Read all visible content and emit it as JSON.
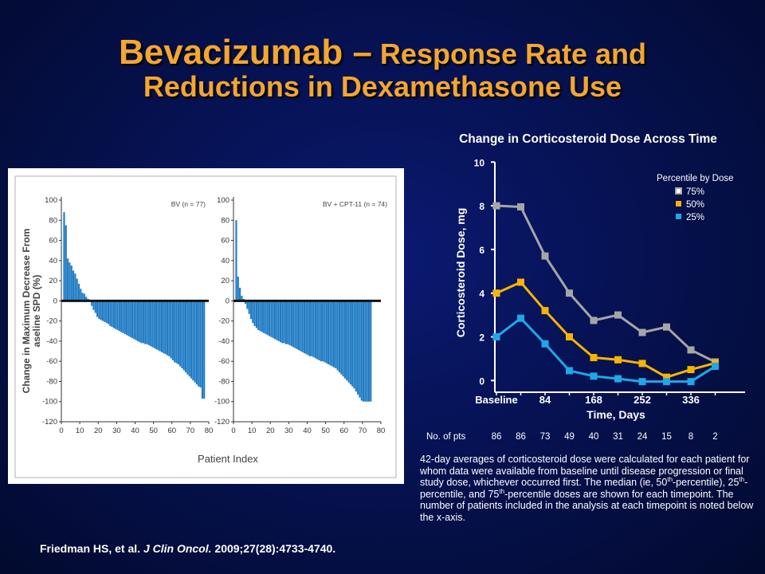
{
  "slide": {
    "title_part1": "Bevacizumab –",
    "title_part2": " Response Rate and",
    "title_line2": "Reductions in Dexamethasone Use",
    "caption_part1": "42-day averages  of corticosteroid dose were calculated for each patient for whom data were available  from baseline until disease progression or final study dose, whichever occurred first. The median (ie, 50",
    "caption_sup1": "th",
    "caption_part2": "-percentile), 25",
    "caption_sup2": "th",
    "caption_part3": "-percentile, and 75",
    "caption_sup3": "th",
    "caption_part4": "-percentile doses are shown for each timepoint. The number of patients included in the analysis at each timepoint is noted below the x-axis.",
    "citation_authors": "Friedman HS, et al. ",
    "citation_journal": "J Clin Oncol.",
    "citation_rest": " 2009;27(28):4733-4740."
  },
  "colors": {
    "title": "#f3a630",
    "bar_blue": "#1f7bc4",
    "p75": "#a6a6a6",
    "p50": "#f5b400",
    "p25": "#1fa8e6"
  },
  "chart_data": [
    {
      "type": "bar",
      "subtype": "waterfall",
      "panel_label": "BV (n = 77)",
      "ylabel": "Change in Maximum Decrease From Baseline SPD (%)",
      "xlabel": "Patient Index",
      "xlim": [
        0,
        80
      ],
      "ylim": [
        -120,
        100
      ],
      "xticks": [
        0,
        10,
        20,
        30,
        40,
        50,
        60,
        70,
        80
      ],
      "yticks": [
        100,
        80,
        60,
        40,
        20,
        0,
        -20,
        -40,
        -60,
        -80,
        -100,
        -120
      ],
      "values": [
        88,
        75,
        42,
        38,
        35,
        30,
        27,
        22,
        17,
        12,
        8,
        7,
        4,
        2,
        -1,
        -5,
        -9,
        -12,
        -16,
        -18,
        -19,
        -20,
        -21,
        -22,
        -23,
        -25,
        -26,
        -27,
        -28,
        -29,
        -30,
        -31,
        -32,
        -33,
        -34,
        -35,
        -36,
        -37,
        -38,
        -39,
        -40,
        -41,
        -42,
        -42,
        -43,
        -43,
        -44,
        -45,
        -46,
        -47,
        -48,
        -49,
        -50,
        -51,
        -52,
        -53,
        -54,
        -55,
        -57,
        -59,
        -61,
        -62,
        -63,
        -65,
        -67,
        -69,
        -71,
        -73,
        -75,
        -77,
        -79,
        -81,
        -83,
        -85,
        -86,
        -97,
        -97
      ]
    },
    {
      "type": "bar",
      "subtype": "waterfall",
      "panel_label": "BV + CPT-11 (n = 74)",
      "xlabel": "",
      "xlim": [
        0,
        80
      ],
      "ylim": [
        -120,
        100
      ],
      "xticks": [
        0,
        10,
        20,
        30,
        40,
        50,
        60,
        70,
        80
      ],
      "yticks": [
        100,
        80,
        60,
        40,
        20,
        0,
        -20,
        -40,
        -60,
        -80,
        -100,
        -120
      ],
      "values": [
        80,
        24,
        13,
        5,
        2,
        -3,
        -8,
        -13,
        -18,
        -22,
        -25,
        -27,
        -29,
        -30,
        -31,
        -32,
        -33,
        -34,
        -35,
        -36,
        -37,
        -38,
        -39,
        -40,
        -41,
        -42,
        -42,
        -43,
        -43,
        -44,
        -45,
        -46,
        -47,
        -48,
        -49,
        -50,
        -51,
        -52,
        -53,
        -54,
        -55,
        -55,
        -56,
        -57,
        -58,
        -59,
        -60,
        -60,
        -61,
        -62,
        -63,
        -64,
        -65,
        -66,
        -67,
        -69,
        -71,
        -73,
        -75,
        -77,
        -79,
        -81,
        -83,
        -85,
        -87,
        -90,
        -93,
        -96,
        -99,
        -100,
        -100,
        -100,
        -100,
        -100
      ]
    },
    {
      "type": "line",
      "title": "Change in Corticosteroid Dose Across Time",
      "xlabel": "Time, Days",
      "ylabel": "Corticosteroid Dose, mg",
      "ylim": [
        0,
        10
      ],
      "yticks": [
        0,
        2,
        4,
        6,
        8,
        10
      ],
      "xticklabels": [
        {
          "x": 0,
          "label": "Baseline"
        },
        {
          "x": 84,
          "label": "84"
        },
        {
          "x": 168,
          "label": "168"
        },
        {
          "x": 252,
          "label": "252"
        },
        {
          "x": 336,
          "label": "336"
        }
      ],
      "x": [
        0,
        42,
        84,
        126,
        168,
        210,
        252,
        294,
        336,
        378
      ],
      "legend_title": "Percentile by Dose",
      "legend_position": "top-right",
      "series": [
        {
          "name": "75%",
          "color_key": "p75",
          "values": [
            8.0,
            7.95,
            5.7,
            4.0,
            2.75,
            3.0,
            2.2,
            2.45,
            1.4,
            0.85
          ]
        },
        {
          "name": "50%",
          "color_key": "p50",
          "values": [
            4.0,
            4.5,
            3.2,
            2.0,
            1.05,
            0.95,
            0.78,
            0.15,
            0.5,
            0.8
          ]
        },
        {
          "name": "25%",
          "color_key": "p25",
          "values": [
            2.0,
            2.85,
            1.68,
            0.45,
            0.2,
            0.08,
            -0.05,
            -0.05,
            -0.05,
            0.65
          ]
        }
      ],
      "n_label": "No. of pts",
      "n_patients": [
        "86",
        "86",
        "73",
        "49",
        "40",
        "31",
        "24",
        "15",
        "8",
        "2"
      ]
    }
  ]
}
